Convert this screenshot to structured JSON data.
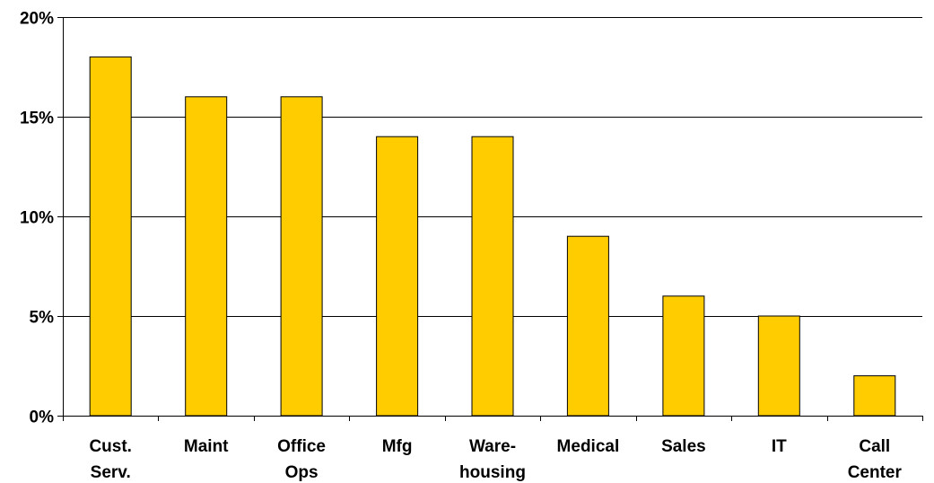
{
  "chart_data": {
    "type": "bar",
    "categories": [
      [
        "Cust.",
        "Serv."
      ],
      [
        "Maint"
      ],
      [
        "Office",
        "Ops"
      ],
      [
        "Mfg"
      ],
      [
        "Ware-",
        "housing"
      ],
      [
        "Medical"
      ],
      [
        "Sales"
      ],
      [
        "IT"
      ],
      [
        "Call",
        "Center"
      ]
    ],
    "values": [
      18,
      16,
      16,
      14,
      14,
      9,
      6,
      5,
      2
    ],
    "y_unit": "%",
    "ylim": [
      0,
      20
    ],
    "yticks": [
      0,
      5,
      10,
      15,
      20
    ],
    "ytick_labels": [
      "0%",
      "5%",
      "10%",
      "15%",
      "20%"
    ],
    "grid": true,
    "bar_color": "#FFCC00",
    "bar_edge_color": "#000000",
    "title": "",
    "xlabel": "",
    "ylabel": ""
  }
}
